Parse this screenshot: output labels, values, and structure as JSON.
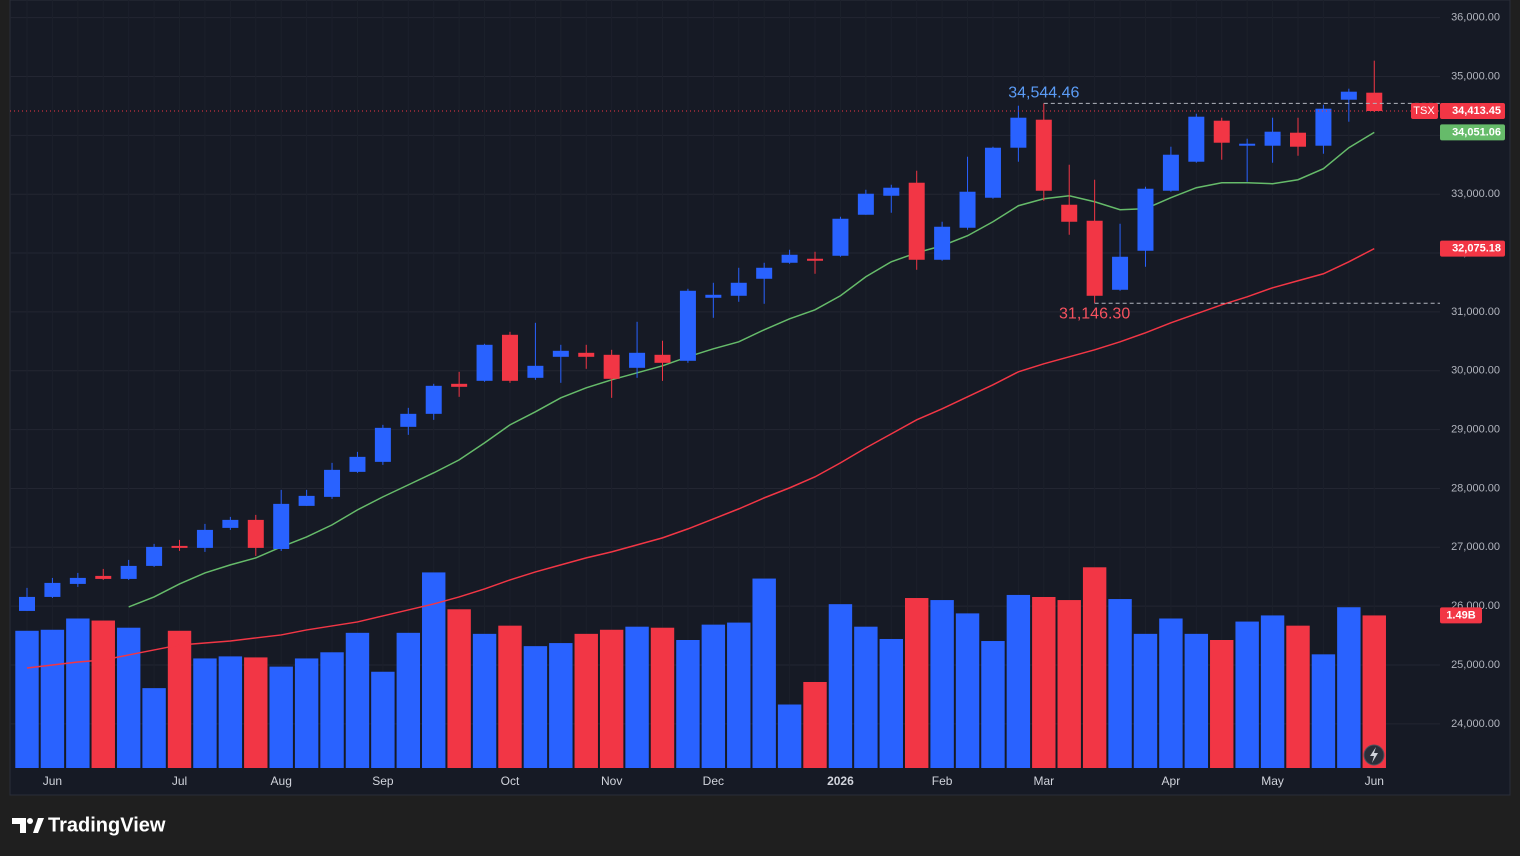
{
  "chart_data": {
    "type": "candlestick",
    "symbol": "TSX",
    "brand": "TradingView",
    "categories": [
      null,
      "Jun",
      null,
      null,
      null,
      null,
      "Jul",
      null,
      null,
      null,
      "Aug",
      null,
      null,
      null,
      "Sep",
      null,
      null,
      null,
      null,
      "Oct",
      null,
      null,
      null,
      "Nov",
      null,
      null,
      null,
      "Dec",
      null,
      null,
      null,
      null,
      "2026",
      null,
      null,
      null,
      "Feb",
      null,
      null,
      null,
      "Mar",
      null,
      null,
      null,
      null,
      "Apr",
      null,
      null,
      null,
      "May",
      null,
      null,
      null,
      "Jun"
    ],
    "open": [
      25919,
      26157,
      26378,
      26514,
      26463,
      26684,
      27024,
      26990,
      27330,
      27466,
      26972,
      27704,
      27857,
      28282,
      28452,
      29047,
      29268,
      29778,
      29829,
      30611,
      29880,
      30237,
      30305,
      30271,
      30050,
      30271,
      30169,
      31240,
      31274,
      31563,
      31835,
      31903,
      31954,
      32651,
      32974,
      33195,
      31886,
      32430,
      32940,
      33790,
      34266,
      32821,
      32549,
      31376,
      32039,
      33059,
      33552,
      34249,
      33824,
      33824,
      34045,
      33824,
      34606,
      34725
    ],
    "high": [
      26310,
      26480,
      26565,
      26633,
      26786,
      27058,
      27126,
      27398,
      27517,
      27551,
      27976,
      27976,
      28435,
      28622,
      29081,
      29370,
      29778,
      29982,
      30458,
      30662,
      30815,
      30441,
      30441,
      30356,
      30832,
      30509,
      31393,
      31495,
      31750,
      31835,
      32056,
      32022,
      32617,
      33076,
      33161,
      33399,
      32532,
      33637,
      33807,
      34504,
      34544.46,
      33501,
      33246,
      32498,
      33127,
      33807,
      34368,
      34300,
      33943,
      34300,
      34300,
      34520,
      34793,
      35269
    ],
    "low": [
      25919,
      26140,
      26327,
      26446,
      26446,
      26667,
      26939,
      26922,
      27296,
      26854,
      26938,
      27704,
      27823,
      28265,
      28401,
      28911,
      29166,
      29557,
      29812,
      29795,
      29846,
      29795,
      30033,
      29540,
      29880,
      29829,
      30135,
      30900,
      31172,
      31138,
      31818,
      31648,
      31937,
      32651,
      32685,
      31716,
      31869,
      32396,
      32923,
      33552,
      32889,
      32311,
      31146.3,
      31359,
      31767,
      33042,
      33535,
      33586,
      33212,
      33535,
      33654,
      33688,
      34232,
      34397
    ],
    "close": [
      26157,
      26395,
      26480,
      26463,
      26684,
      27007,
      26990,
      27296,
      27466,
      26990,
      27738,
      27874,
      28316,
      28537,
      29030,
      29268,
      29744,
      29727,
      30441,
      29829,
      30084,
      30339,
      30237,
      29863,
      30305,
      30135,
      31359,
      31291,
      31495,
      31750,
      31971,
      31869,
      32583,
      33008,
      33110,
      31886,
      32447,
      33042,
      33790,
      34300,
      33059,
      32532,
      31274,
      31937,
      33093,
      33671,
      34317,
      33875,
      33858,
      34062,
      33807,
      34453,
      34742,
      34413.45
    ],
    "up_color": "#2962ff",
    "down_color": "#f23645",
    "ylim": [
      23250,
      36300
    ],
    "yticks": [
      {
        "value": 24000,
        "label": "24,000.00"
      },
      {
        "value": 25000,
        "label": "25,000.00"
      },
      {
        "value": 26000,
        "label": "26,000.00"
      },
      {
        "value": 27000,
        "label": "27,000.00"
      },
      {
        "value": 28000,
        "label": "28,000.00"
      },
      {
        "value": 29000,
        "label": "29,000.00"
      },
      {
        "value": 30000,
        "label": "30,000.00"
      },
      {
        "value": 31000,
        "label": "31,000.00"
      },
      {
        "value": 32000,
        "label": "32,000.00"
      },
      {
        "value": 33000,
        "label": "33,000.00"
      },
      {
        "value": 34000,
        "label": "34,000.00"
      },
      {
        "value": 35000,
        "label": "35,000.00"
      },
      {
        "value": 36000,
        "label": "36,000.00"
      }
    ],
    "grid": true,
    "last_price": {
      "value": 34413.45,
      "label": "34,413.45"
    },
    "high_marker": {
      "index": 40,
      "value": 34544.46,
      "label": "34,544.46",
      "color": "#5b9cf6"
    },
    "low_marker": {
      "index": 42,
      "value": 31146.3,
      "label": "31,146.30",
      "color": "#f7525f"
    },
    "moving_averages": [
      {
        "color": "#66bb6a",
        "values": [
          null,
          null,
          null,
          null,
          25987,
          26157,
          26378,
          26565,
          26701,
          26820,
          27007,
          27177,
          27381,
          27636,
          27857,
          28061,
          28265,
          28486,
          28775,
          29081,
          29302,
          29540,
          29710,
          29846,
          29965,
          30084,
          30237,
          30373,
          30492,
          30696,
          30883,
          31036,
          31274,
          31597,
          31852,
          32005,
          32124,
          32294,
          32532,
          32804,
          32923,
          32974,
          32872,
          32736,
          32753,
          32940,
          33110,
          33195,
          33195,
          33178,
          33246,
          33433,
          33790,
          34051.06
        ],
        "last_label": {
          "value": 34051.06,
          "label": "34,051.06"
        }
      },
      {
        "color": "#f23645",
        "values": [
          24950,
          25001,
          25052,
          25086,
          25171,
          25256,
          25341,
          25375,
          25409,
          25460,
          25511,
          25596,
          25664,
          25732,
          25834,
          25936,
          26038,
          26157,
          26293,
          26446,
          26582,
          26701,
          26820,
          26922,
          27041,
          27160,
          27313,
          27483,
          27653,
          27840,
          28010,
          28197,
          28435,
          28690,
          28928,
          29166,
          29353,
          29557,
          29761,
          29982,
          30118,
          30237,
          30356,
          30492,
          30645,
          30815,
          30968,
          31121,
          31257,
          31410,
          31529,
          31648,
          31852,
          32075.18
        ],
        "last_label": {
          "value": 32075.18,
          "label": "32,075.18"
        }
      }
    ],
    "volume": {
      "values": [
        1.34,
        1.35,
        1.46,
        1.44,
        1.37,
        0.78,
        1.34,
        1.07,
        1.09,
        1.08,
        0.99,
        1.07,
        1.13,
        1.32,
        0.94,
        1.32,
        1.91,
        1.55,
        1.31,
        1.39,
        1.19,
        1.22,
        1.31,
        1.35,
        1.38,
        1.37,
        1.25,
        1.4,
        1.42,
        1.85,
        0.62,
        0.84,
        1.6,
        1.38,
        1.26,
        1.66,
        1.64,
        1.51,
        1.24,
        1.69,
        1.67,
        1.64,
        1.96,
        1.65,
        1.31,
        1.46,
        1.31,
        1.25,
        1.43,
        1.49,
        1.39,
        1.11,
        1.57,
        1.49
      ],
      "ylim": [
        0,
        7.5
      ],
      "last_label": {
        "value": 1.49,
        "label": "1.49B"
      }
    }
  }
}
